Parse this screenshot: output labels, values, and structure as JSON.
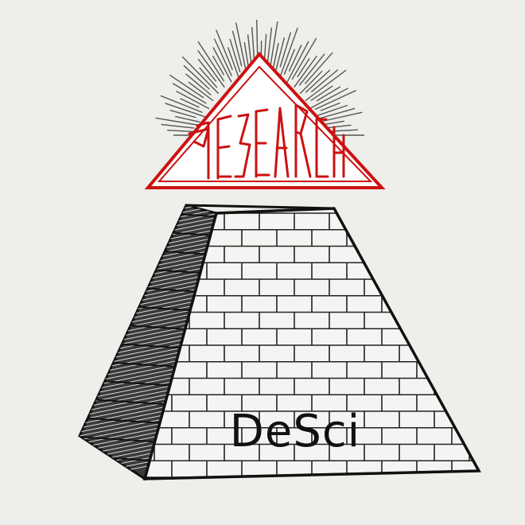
{
  "logo": {
    "word": "RESEARCH",
    "stroke_color": "#cc1111",
    "fill_color": "#ffffff"
  },
  "pyramid": {
    "label": "DeSci",
    "brick_fill": "#f4f4f2",
    "line_color": "#111111",
    "shadow_side_color": "#3a3a3a"
  },
  "background_color": "#eeeeea"
}
